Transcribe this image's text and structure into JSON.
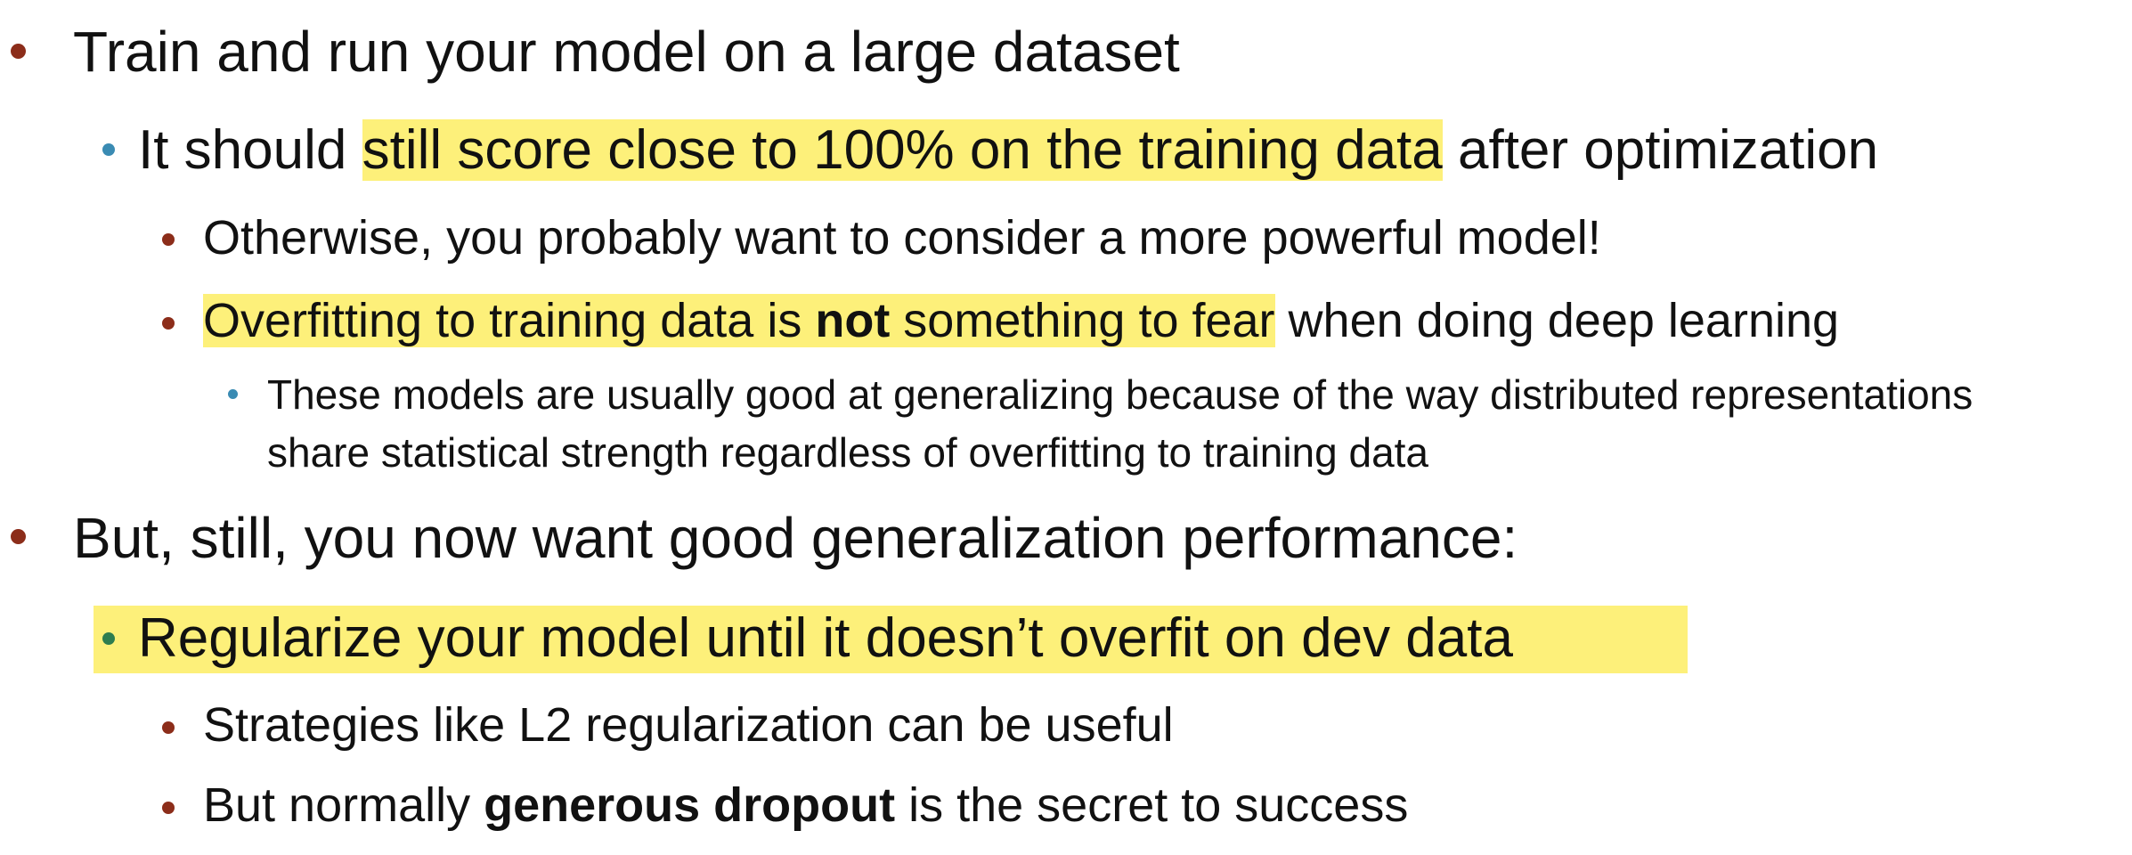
{
  "bullets": [
    {
      "text": "Train and run your model on a large dataset"
    },
    {
      "pre": "It should ",
      "hl": "still score close to 100% on the training data",
      "post": " after optimization"
    },
    {
      "text": "Otherwise, you probably want to consider a more powerful model!"
    },
    {
      "hl_pre": "Overfitting to training data is ",
      "hl_bold": "not",
      "hl_post": " something to fear",
      "post": " when doing deep learning"
    },
    {
      "line1": "These models are usually good at generalizing because of the way distributed representations",
      "line2": "share statistical strength regardless of overfitting to training data"
    },
    {
      "text": "But, still, you now want good generalization performance:"
    },
    {
      "text": "Regularize your model until it doesn’t overfit on dev data"
    },
    {
      "text": "Strategies like L2 regularization can be useful"
    },
    {
      "pre": "But normally ",
      "bold": "generous dropout",
      "post": " is the secret to success"
    }
  ],
  "colors": {
    "highlight": "#fdf07a",
    "bullet_red": "#8c2d1a",
    "bullet_blue": "#3a8bb3",
    "bullet_green": "#2e7d4f"
  }
}
